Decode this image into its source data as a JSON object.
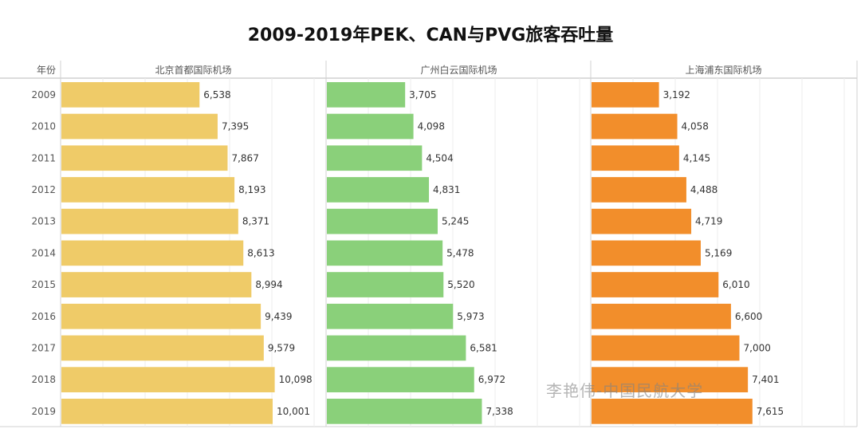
{
  "chart_data": {
    "type": "bar",
    "orientation": "horizontal",
    "title": "2009-2019年PEK、CAN与PVG旅客吞吐量",
    "row_header": "年份",
    "categories": [
      "2009",
      "2010",
      "2011",
      "2012",
      "2013",
      "2014",
      "2015",
      "2016",
      "2017",
      "2018",
      "2019"
    ],
    "series": [
      {
        "name": "北京首都国际机场",
        "color": "#EFCB68",
        "values": [
          6538,
          7395,
          7867,
          8193,
          8371,
          8613,
          8994,
          9439,
          9579,
          10098,
          10001
        ]
      },
      {
        "name": "广州白云国际机场",
        "color": "#8AD07A",
        "values": [
          3705,
          4098,
          4504,
          4831,
          5245,
          5478,
          5520,
          5973,
          6581,
          6972,
          7338
        ]
      },
      {
        "name": "上海浦东国际机场",
        "color": "#F28E2B",
        "values": [
          3192,
          4058,
          4145,
          4488,
          4719,
          5169,
          6010,
          6600,
          7000,
          7401,
          7615
        ]
      }
    ],
    "xlim": [
      0,
      12500
    ],
    "grid": true,
    "data_labels": true,
    "watermark": "李艳伟-中国民航大学"
  }
}
